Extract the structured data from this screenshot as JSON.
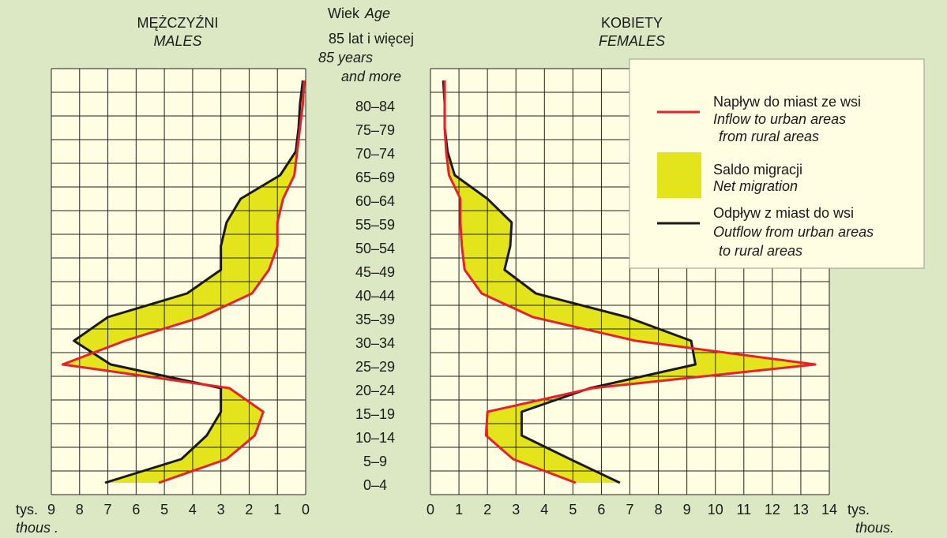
{
  "chart_data": {
    "type": "migration-pyramid",
    "category_title": "Wiek",
    "category_title_en": "Age",
    "categories": [
      "0–4",
      "5–9",
      "10–14",
      "15–19",
      "20–24",
      "25–29",
      "30–34",
      "35–39",
      "40–44",
      "45–49",
      "50–54",
      "55–59",
      "60–64",
      "65–69",
      "70–74",
      "75–79",
      "80–84",
      "85 lat i więcej"
    ],
    "last_category_en": [
      "85 years",
      "and more"
    ],
    "unit": "tys.",
    "unit_en": [
      "thous .",
      "thous."
    ],
    "grid": true,
    "legend": {
      "inflow": {
        "color": "#e8202a",
        "lines": [
          "Napływ do miast ze wsi",
          "Inflow to urban areas",
          "from rural areas"
        ]
      },
      "net": {
        "color": "#e4e41c",
        "lines": [
          "Saldo migracji",
          "Net migration"
        ]
      },
      "outflow": {
        "color": "#1a1a1a",
        "lines": [
          "Odpływ z miast do wsi",
          "Outflow from urban areas",
          "to rural areas"
        ]
      }
    },
    "panels": [
      {
        "title": "MĘŻCZYŹNI",
        "title_en": "MALES",
        "xlim": [
          9,
          0
        ],
        "xticks": [
          9,
          8,
          7,
          6,
          5,
          4,
          3,
          2,
          1,
          0
        ],
        "inflow": [
          5.2,
          2.8,
          1.8,
          1.5,
          2.7,
          8.6,
          6.4,
          3.7,
          1.9,
          1.3,
          1.0,
          1.0,
          0.8,
          0.4,
          0.3,
          0.2,
          0.1,
          0.05
        ],
        "outflow": [
          7.1,
          4.4,
          3.5,
          3.0,
          3.0,
          6.9,
          8.2,
          7.0,
          4.2,
          3.0,
          3.0,
          2.8,
          2.3,
          0.9,
          0.35,
          0.25,
          0.2,
          0.1
        ]
      },
      {
        "title": "KOBIETY",
        "title_en": "FEMALES",
        "xlim": [
          0,
          14
        ],
        "xticks": [
          0,
          1,
          2,
          3,
          4,
          5,
          6,
          7,
          8,
          9,
          10,
          11,
          12,
          13,
          14
        ],
        "inflow": [
          5.1,
          2.9,
          1.95,
          2.0,
          5.7,
          13.5,
          7.2,
          3.6,
          1.8,
          1.2,
          1.1,
          1.05,
          1.05,
          0.65,
          0.55,
          0.5,
          0.5,
          0.5
        ],
        "outflow": [
          6.65,
          4.9,
          3.2,
          3.2,
          5.6,
          9.3,
          9.15,
          6.9,
          3.7,
          2.6,
          2.8,
          2.85,
          2.0,
          0.85,
          0.6,
          0.5,
          0.5,
          0.45
        ]
      }
    ]
  }
}
